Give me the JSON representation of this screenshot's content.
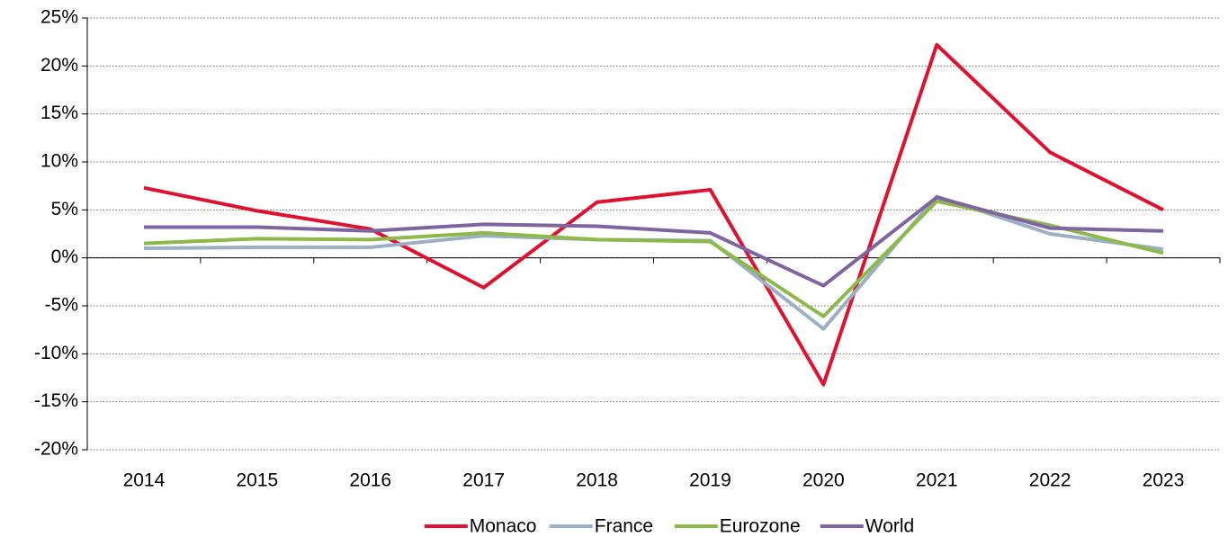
{
  "chart_data": {
    "type": "line",
    "categories": [
      "2014",
      "2015",
      "2016",
      "2017",
      "2018",
      "2019",
      "2020",
      "2021",
      "2022",
      "2023"
    ],
    "series": [
      {
        "name": "Monaco",
        "color": "#e0102f",
        "values": [
          7.3,
          4.9,
          3.0,
          -3.1,
          5.8,
          7.1,
          -13.2,
          22.2,
          11.0,
          5.0
        ]
      },
      {
        "name": "France",
        "color": "#9bb0c4",
        "values": [
          1.0,
          1.1,
          1.1,
          2.3,
          1.9,
          1.8,
          -7.4,
          6.4,
          2.5,
          0.9
        ]
      },
      {
        "name": "Eurozone",
        "color": "#8db84a",
        "values": [
          1.5,
          2.0,
          1.9,
          2.6,
          1.9,
          1.7,
          -6.1,
          5.9,
          3.4,
          0.5
        ]
      },
      {
        "name": "World",
        "color": "#8064a2",
        "values": [
          3.2,
          3.2,
          2.8,
          3.5,
          3.3,
          2.6,
          -2.9,
          6.3,
          3.1,
          2.8
        ]
      }
    ],
    "ylim": [
      -20,
      25
    ],
    "yticks": [
      {
        "value": -20,
        "label": "-20%"
      },
      {
        "value": -15,
        "label": "-15%"
      },
      {
        "value": -10,
        "label": "-10%"
      },
      {
        "value": -5,
        "label": "-5%"
      },
      {
        "value": 0,
        "label": "0%"
      },
      {
        "value": 5,
        "label": "5%"
      },
      {
        "value": 10,
        "label": "10%"
      },
      {
        "value": 15,
        "label": "15%"
      },
      {
        "value": 20,
        "label": "20%"
      },
      {
        "value": 25,
        "label": "25%"
      }
    ],
    "grid": true,
    "legend": "bottom"
  }
}
